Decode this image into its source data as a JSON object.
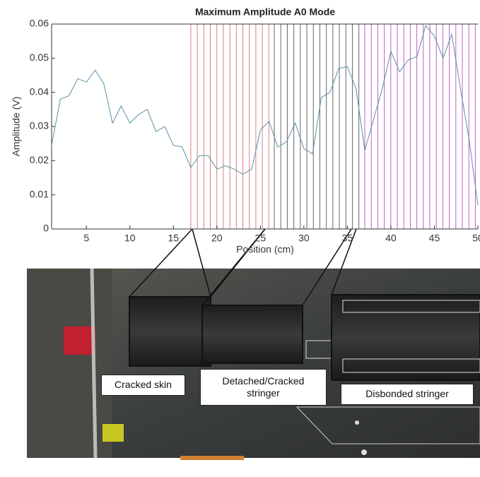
{
  "chart_data": {
    "type": "line",
    "title": "Maximum Amplitude A0 Mode",
    "xlabel": "Position (cm)",
    "ylabel": "Amplitude (V)",
    "x": [
      1,
      2,
      3,
      4,
      5,
      6,
      7,
      8,
      9,
      10,
      11,
      12,
      13,
      14,
      15,
      16,
      17,
      18,
      19,
      20,
      21,
      22,
      23,
      24,
      25,
      26,
      27,
      28,
      29,
      30,
      31,
      32,
      33,
      34,
      35,
      36,
      37,
      38,
      39,
      40,
      41,
      42,
      43,
      44,
      45,
      46,
      47,
      48,
      49,
      50
    ],
    "values": [
      0.0245,
      0.038,
      0.039,
      0.044,
      0.043,
      0.0465,
      0.0425,
      0.031,
      0.036,
      0.031,
      0.0335,
      0.035,
      0.0285,
      0.03,
      0.0245,
      0.024,
      0.018,
      0.0215,
      0.0215,
      0.0175,
      0.0185,
      0.0175,
      0.016,
      0.0175,
      0.029,
      0.0315,
      0.024,
      0.0255,
      0.031,
      0.0235,
      0.022,
      0.0385,
      0.04,
      0.047,
      0.0475,
      0.041,
      0.023,
      0.032,
      0.041,
      0.052,
      0.046,
      0.0495,
      0.0505,
      0.0595,
      0.0565,
      0.05,
      0.057,
      0.041,
      0.026,
      0.007
    ],
    "color": "#5a8fa8",
    "xlim": [
      1,
      50
    ],
    "ylim": [
      0,
      0.06
    ],
    "xticks": [
      5,
      10,
      15,
      20,
      25,
      30,
      35,
      40,
      45,
      50
    ],
    "yticks": [
      0,
      0.01,
      0.02,
      0.03,
      0.04,
      0.05,
      0.06
    ],
    "regions": [
      {
        "start": 17,
        "end": 26,
        "color": "#d98080"
      },
      {
        "start": 26.6,
        "end": 36.6,
        "color": "#666666"
      },
      {
        "start": 37,
        "end": 50,
        "color": "#c060c0"
      }
    ],
    "annotations": [
      "Cracked skin",
      "Detached/Cracked stringer",
      "Disbonded stringer"
    ]
  }
}
